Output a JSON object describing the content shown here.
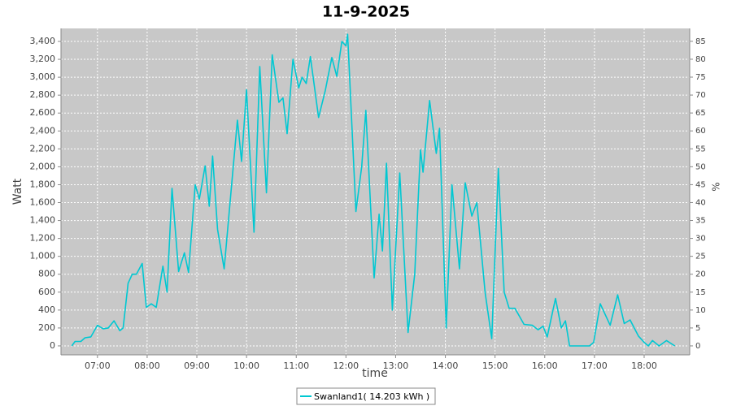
{
  "chart_data": {
    "type": "line",
    "title": "11-9-2025",
    "xlabel": "time",
    "ylabel": "Watt",
    "y2label": "%",
    "x": [
      "06:29",
      "06:33",
      "06:40",
      "06:45",
      "06:52",
      "07:00",
      "07:07",
      "07:13",
      "07:20",
      "07:27",
      "07:31",
      "07:37",
      "07:42",
      "07:47",
      "07:54",
      "07:59",
      "08:05",
      "08:11",
      "08:19",
      "08:24",
      "08:30",
      "08:38",
      "08:45",
      "08:50",
      "08:58",
      "09:03",
      "09:10",
      "09:15",
      "09:19",
      "09:25",
      "09:33",
      "09:42",
      "09:49",
      "09:54",
      "10:00",
      "10:09",
      "10:16",
      "10:24",
      "10:31",
      "10:39",
      "10:44",
      "10:49",
      "10:56",
      "11:03",
      "11:07",
      "11:12",
      "11:17",
      "11:27",
      "11:35",
      "11:43",
      "11:49",
      "11:55",
      "12:00",
      "12:02",
      "12:12",
      "12:19",
      "12:24",
      "12:34",
      "12:40",
      "12:44",
      "12:49",
      "12:56",
      "13:05",
      "13:15",
      "13:23",
      "13:30",
      "13:33",
      "13:41",
      "13:49",
      "13:53",
      "14:01",
      "14:08",
      "14:17",
      "14:24",
      "14:32",
      "14:38",
      "14:48",
      "14:56",
      "15:04",
      "15:11",
      "15:17",
      "15:24",
      "15:35",
      "15:45",
      "15:52",
      "15:58",
      "16:03",
      "16:13",
      "16:20",
      "16:25",
      "16:30",
      "16:54",
      "16:59",
      "17:07",
      "17:19",
      "17:28",
      "17:36",
      "17:43",
      "17:53",
      "18:00",
      "18:05",
      "18:10",
      "18:18",
      "18:27",
      "18:37"
    ],
    "series": [
      {
        "name": "Swanland1( 14.203 kWh )",
        "color": "#00c8d2",
        "values": [
          0,
          50,
          50,
          90,
          100,
          230,
          190,
          200,
          280,
          170,
          200,
          700,
          800,
          800,
          920,
          430,
          470,
          430,
          890,
          600,
          1760,
          830,
          1040,
          820,
          1800,
          1640,
          2010,
          1560,
          2120,
          1300,
          860,
          1800,
          2520,
          2060,
          2860,
          1270,
          3120,
          1710,
          3250,
          2720,
          2770,
          2370,
          3200,
          2880,
          3000,
          2930,
          3230,
          2550,
          2850,
          3220,
          3010,
          3400,
          3350,
          3480,
          1500,
          2000,
          2630,
          760,
          1470,
          1060,
          2040,
          400,
          1930,
          150,
          800,
          2190,
          1940,
          2740,
          2150,
          2430,
          200,
          1800,
          860,
          1820,
          1450,
          1600,
          600,
          80,
          1980,
          600,
          420,
          420,
          240,
          230,
          180,
          220,
          100,
          530,
          200,
          280,
          0,
          0,
          40,
          470,
          230,
          570,
          250,
          290,
          110,
          40,
          0,
          60,
          0,
          60,
          0
        ]
      }
    ],
    "xlim": [
      "06:16",
      "18:55"
    ],
    "xticks": [
      "07:00",
      "08:00",
      "09:00",
      "10:00",
      "11:00",
      "12:00",
      "13:00",
      "14:00",
      "15:00",
      "16:00",
      "17:00",
      "18:00"
    ],
    "ylim": [
      -100,
      3545
    ],
    "yticks": [
      0,
      200,
      400,
      600,
      800,
      {
        "value": 1000,
        "label": "1,000"
      },
      {
        "value": 1200,
        "label": "1,200"
      },
      {
        "value": 1400,
        "label": "1,400"
      },
      {
        "value": 1600,
        "label": "1,600"
      },
      {
        "value": 1800,
        "label": "1,800"
      },
      {
        "value": 2000,
        "label": "2,000"
      },
      {
        "value": 2200,
        "label": "2,200"
      },
      {
        "value": 2400,
        "label": "2,400"
      },
      {
        "value": 2600,
        "label": "2,600"
      },
      {
        "value": 2800,
        "label": "2,800"
      },
      {
        "value": 3000,
        "label": "3,000"
      },
      {
        "value": 3200,
        "label": "3,200"
      },
      {
        "value": 3400,
        "label": "3,400"
      }
    ],
    "y2lim": [
      -2.5,
      88.6
    ],
    "y2ticks": [
      0,
      5,
      10,
      15,
      20,
      25,
      30,
      35,
      40,
      45,
      50,
      55,
      60,
      65,
      70,
      75,
      80,
      85
    ],
    "grid": true,
    "legend": "bottom"
  }
}
